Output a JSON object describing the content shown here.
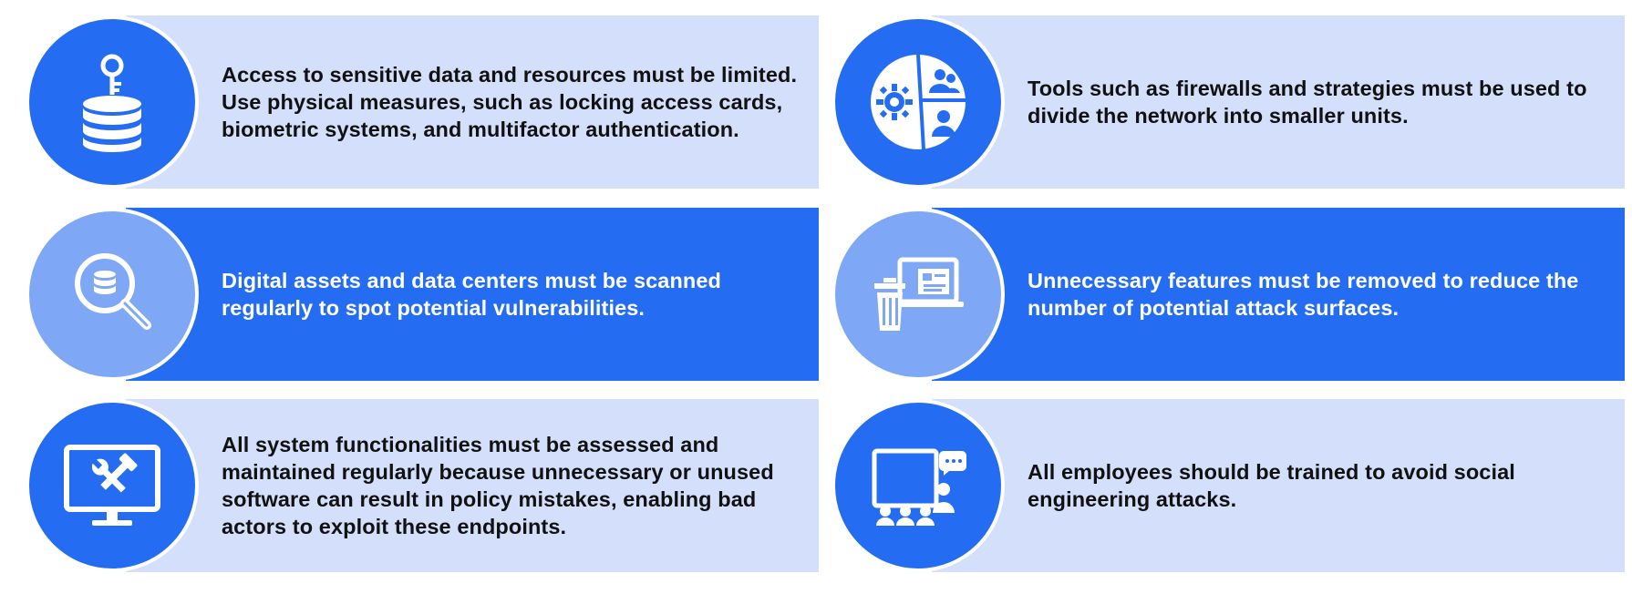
{
  "colors": {
    "light_bar": "#d4e0fb",
    "dark_bar": "#246cf2",
    "icon_circle_primary": "#246cf2",
    "icon_circle_muted": "#7ea7f6",
    "text_dark": "#111111",
    "text_light": "#ffffff"
  },
  "cards": [
    {
      "icon": "database-key-icon",
      "text": "Access to sensitive data and resources must be limited. Use physical measures, such as locking access cards, biometric systems, and multifactor authentication."
    },
    {
      "icon": "network-segments-icon",
      "text": "Tools such as firewalls and strategies must be used to divide the network into smaller units."
    },
    {
      "icon": "database-scan-icon",
      "text": "Digital assets and data centers must be scanned regularly to spot potential vulnerabilities."
    },
    {
      "icon": "trash-laptop-icon",
      "text": "Unnecessary features must be removed to reduce the number of potential attack surfaces."
    },
    {
      "icon": "monitor-tools-icon",
      "text": "All system functionalities must be assessed and maintained regularly because unnecessary or unused software can result in policy mistakes, enabling bad actors to exploit these endpoints."
    },
    {
      "icon": "training-presentation-icon",
      "text": "All employees should be trained to avoid social engineering attacks."
    }
  ]
}
